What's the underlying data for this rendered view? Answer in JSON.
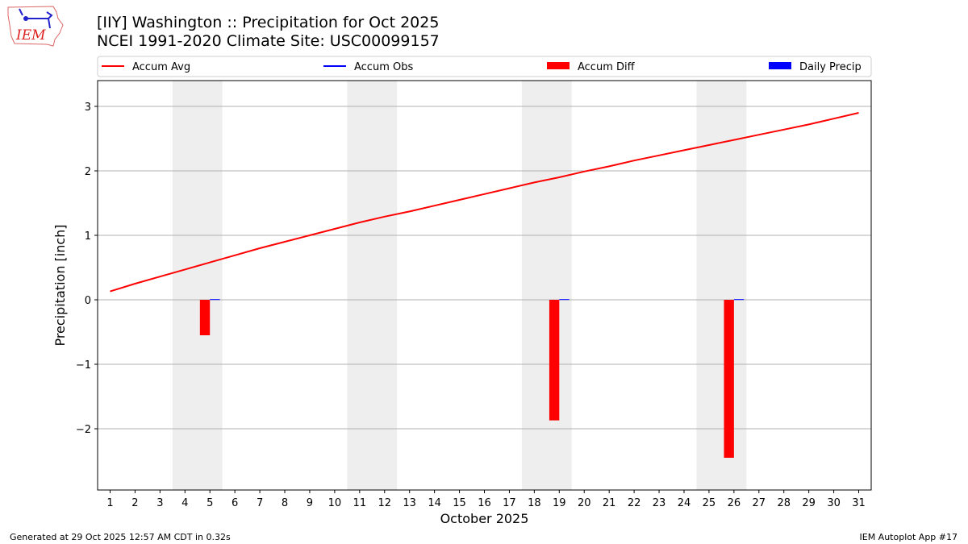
{
  "header": {
    "title_line1": "[IIY] Washington :: Precipitation for Oct 2025",
    "title_line2": "NCEI 1991-2020 Climate Site: USC00099157",
    "logo_text": "IEM"
  },
  "footer": {
    "left": "Generated at 29 Oct 2025 12:57 AM CDT in 0.32s",
    "right": "IEM Autoplot App #17"
  },
  "colors": {
    "avg": "#ff0000",
    "obs": "#0000ff",
    "diff": "#ff0000",
    "daily": "#0000ff",
    "weekend": "#eeeeee",
    "grid": "#b0b0b0"
  },
  "chart_data": {
    "type": "bar",
    "title": "[IIY] Washington :: Precipitation for Oct 2025",
    "subtitle": "NCEI 1991-2020 Climate Site: USC00099157",
    "xlabel": "October 2025",
    "ylabel": "Precipitation [inch]",
    "xlim": [
      0.5,
      31.5
    ],
    "ylim": [
      -2.95,
      3.4
    ],
    "grid": true,
    "legend_placement": "top",
    "legend": [
      "Accum Avg",
      "Accum Obs",
      "Accum Diff",
      "Daily Precip"
    ],
    "x": [
      1,
      2,
      3,
      4,
      5,
      6,
      7,
      8,
      9,
      10,
      11,
      12,
      13,
      14,
      15,
      16,
      17,
      18,
      19,
      20,
      21,
      22,
      23,
      24,
      25,
      26,
      27,
      28,
      29,
      30,
      31
    ],
    "x_tick_labels": [
      "1",
      "2",
      "3",
      "4",
      "5",
      "6",
      "7",
      "8",
      "9",
      "10",
      "11",
      "12",
      "13",
      "14",
      "15",
      "16",
      "17",
      "18",
      "19",
      "20",
      "21",
      "22",
      "23",
      "24",
      "25",
      "26",
      "27",
      "28",
      "29",
      "30",
      "31"
    ],
    "y_ticks": [
      -2,
      -1,
      0,
      1,
      2,
      3
    ],
    "y_tick_labels": [
      "−2",
      "−1",
      "0",
      "1",
      "2",
      "3"
    ],
    "weekend_bands": [
      [
        3.5,
        5.5
      ],
      [
        10.5,
        12.5
      ],
      [
        17.5,
        19.5
      ],
      [
        24.5,
        26.5
      ]
    ],
    "series": [
      {
        "name": "Accum Avg",
        "kind": "line",
        "values": [
          0.13,
          0.25,
          0.36,
          0.47,
          0.58,
          0.69,
          0.8,
          0.9,
          1.0,
          1.1,
          1.2,
          1.29,
          1.37,
          1.46,
          1.55,
          1.64,
          1.73,
          1.82,
          1.9,
          1.99,
          2.07,
          2.16,
          2.24,
          2.32,
          2.4,
          2.48,
          2.56,
          2.64,
          2.72,
          2.81,
          2.9
        ]
      },
      {
        "name": "Accum Diff",
        "kind": "bar",
        "points": [
          {
            "x": 5,
            "y": -0.55
          },
          {
            "x": 19,
            "y": -1.87
          },
          {
            "x": 26,
            "y": -2.45
          }
        ]
      },
      {
        "name": "Daily Precip",
        "kind": "bar",
        "points": [
          {
            "x": 5,
            "y": 0.01
          },
          {
            "x": 19,
            "y": 0.01
          },
          {
            "x": 26,
            "y": 0.01
          }
        ]
      }
    ]
  }
}
